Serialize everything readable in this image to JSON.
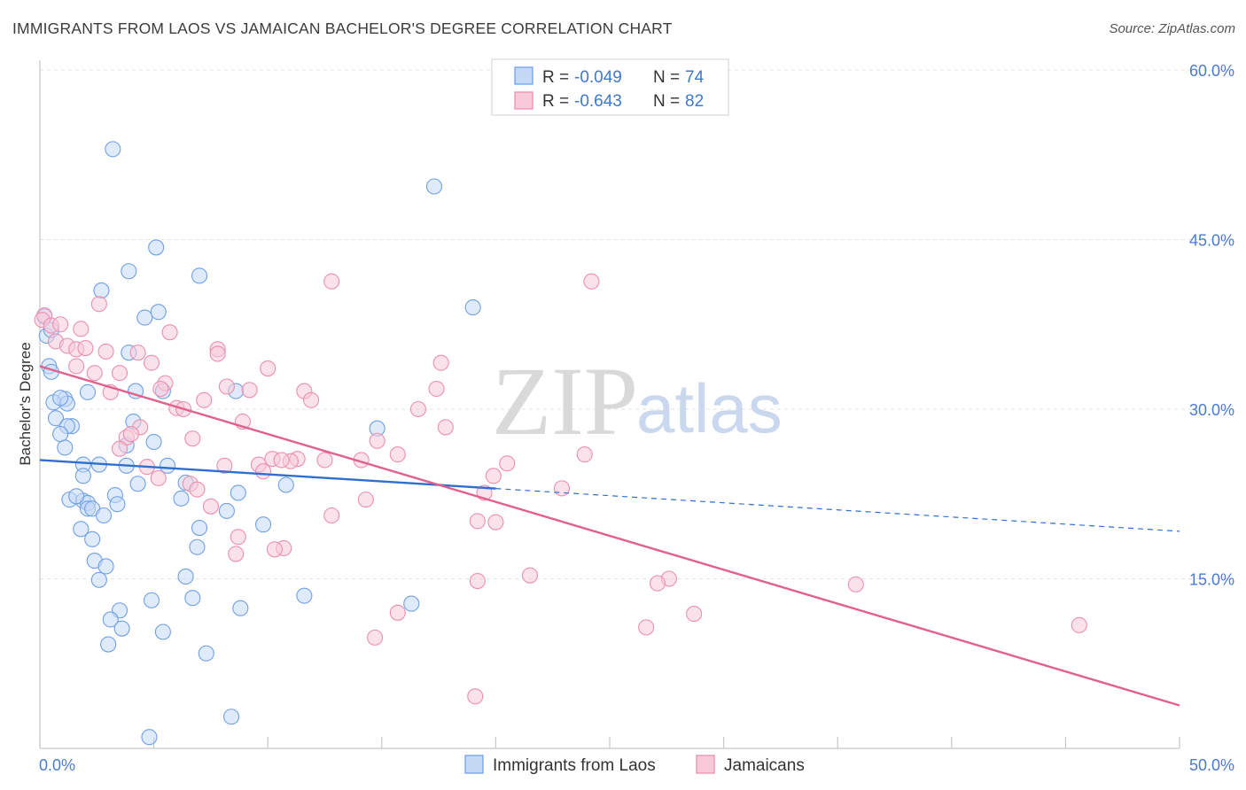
{
  "title": "IMMIGRANTS FROM LAOS VS JAMAICAN BACHELOR'S DEGREE CORRELATION CHART",
  "source": "Source: ZipAtlas.com",
  "watermark": {
    "zip": "ZIP",
    "atlas": "atlas"
  },
  "legend": {
    "rows": [
      {
        "r_label": "R =",
        "r_value": "-0.049",
        "n_label": "N =",
        "n_value": "74",
        "color": "#6fa0e6",
        "fill": "#c5d9f5"
      },
      {
        "r_label": "R =",
        "r_value": "-0.643",
        "n_label": "N =",
        "n_value": "82",
        "color": "#ec8fae",
        "fill": "#f8cad9"
      }
    ]
  },
  "bottom_legend": [
    "Immigrants from Laos",
    "Jamaicans"
  ],
  "chart_data": {
    "type": "scatter",
    "title": "IMMIGRANTS FROM LAOS VS JAMAICAN BACHELOR'S DEGREE CORRELATION CHART",
    "xlabel": "",
    "ylabel": "Bachelor's Degree",
    "xlim": [
      0,
      50
    ],
    "ylim": [
      0,
      60
    ],
    "x_tick_labels": [
      "0.0%",
      "50.0%"
    ],
    "y_ticks": [
      15,
      30,
      45,
      60
    ],
    "y_tick_labels": [
      "15.0%",
      "30.0%",
      "45.0%",
      "60.0%"
    ],
    "grid": true,
    "series": [
      {
        "name": "Immigrants from Laos",
        "color": "#6fa0e6",
        "line_color": "#2e6fcf",
        "trend": {
          "x0": 0,
          "y0": 25.5,
          "x1": 50,
          "y1": 19.2,
          "solid_until": 20
        },
        "points": [
          [
            3.2,
            53
          ],
          [
            17.3,
            49.7
          ],
          [
            5.1,
            44.3
          ],
          [
            3.9,
            42.2
          ],
          [
            7,
            41.8
          ],
          [
            2.7,
            40.5
          ],
          [
            19,
            39
          ],
          [
            5.2,
            38.6
          ],
          [
            4.6,
            38.1
          ],
          [
            0.2,
            38.2
          ],
          [
            0.3,
            36.5
          ],
          [
            0.5,
            37
          ],
          [
            3.9,
            35
          ],
          [
            0.4,
            33.8
          ],
          [
            0.5,
            33.3
          ],
          [
            4.2,
            31.6
          ],
          [
            5.4,
            31.6
          ],
          [
            8.6,
            31.6
          ],
          [
            1.1,
            30.9
          ],
          [
            0.6,
            30.6
          ],
          [
            1.2,
            30.5
          ],
          [
            0.7,
            29.2
          ],
          [
            4.1,
            28.9
          ],
          [
            1.4,
            28.5
          ],
          [
            1.2,
            28.5
          ],
          [
            0.9,
            27.8
          ],
          [
            5.0,
            27.1
          ],
          [
            3.8,
            26.8
          ],
          [
            1.1,
            26.6
          ],
          [
            1.9,
            25.1
          ],
          [
            2.6,
            25.1
          ],
          [
            3.8,
            25
          ],
          [
            5.6,
            25
          ],
          [
            1.9,
            24.1
          ],
          [
            4.3,
            23.4
          ],
          [
            6.4,
            23.5
          ],
          [
            10.8,
            23.3
          ],
          [
            8.7,
            22.6
          ],
          [
            3.3,
            22.4
          ],
          [
            6.2,
            22.1
          ],
          [
            1.3,
            22
          ],
          [
            1.9,
            21.9
          ],
          [
            2.1,
            21.7
          ],
          [
            3.4,
            21.6
          ],
          [
            2.1,
            21.2
          ],
          [
            2.3,
            21.2
          ],
          [
            8.2,
            21
          ],
          [
            2.8,
            20.6
          ],
          [
            9.8,
            19.8
          ],
          [
            7.0,
            19.5
          ],
          [
            1.8,
            19.4
          ],
          [
            2.3,
            18.5
          ],
          [
            6.9,
            17.8
          ],
          [
            2.4,
            16.6
          ],
          [
            2.9,
            16.1
          ],
          [
            6.4,
            15.2
          ],
          [
            2.6,
            14.9
          ],
          [
            11.6,
            13.5
          ],
          [
            6.7,
            13.3
          ],
          [
            4.9,
            13.1
          ],
          [
            16.3,
            12.8
          ],
          [
            8.8,
            12.4
          ],
          [
            3.5,
            12.2
          ],
          [
            3.1,
            11.4
          ],
          [
            3.6,
            10.6
          ],
          [
            5.4,
            10.3
          ],
          [
            3.0,
            9.2
          ],
          [
            7.3,
            8.4
          ],
          [
            8.4,
            2.8
          ],
          [
            4.8,
            1
          ],
          [
            14.8,
            28.3
          ],
          [
            0.9,
            31
          ],
          [
            2.1,
            31.5
          ],
          [
            1.6,
            22.3
          ]
        ]
      },
      {
        "name": "Jamaicans",
        "color": "#ec8fae",
        "line_color": "#e0608e",
        "trend": {
          "x0": 0,
          "y0": 33.8,
          "x1": 50,
          "y1": 3.8
        },
        "points": [
          [
            0.2,
            38.3
          ],
          [
            0.1,
            37.9
          ],
          [
            0.5,
            37.4
          ],
          [
            0.9,
            37.5
          ],
          [
            1.8,
            37.1
          ],
          [
            0.7,
            36
          ],
          [
            1.2,
            35.6
          ],
          [
            1.6,
            35.3
          ],
          [
            2.0,
            35.4
          ],
          [
            2.9,
            35.1
          ],
          [
            4.3,
            35
          ],
          [
            7.8,
            35.3
          ],
          [
            7.8,
            34.9
          ],
          [
            2.6,
            39.3
          ],
          [
            5.7,
            36.8
          ],
          [
            12.8,
            41.3
          ],
          [
            24.2,
            41.3
          ],
          [
            17.6,
            34.1
          ],
          [
            10.0,
            33.6
          ],
          [
            1.6,
            33.8
          ],
          [
            2.4,
            33.2
          ],
          [
            3.5,
            33.2
          ],
          [
            4.9,
            34.1
          ],
          [
            5.5,
            32.3
          ],
          [
            5.3,
            31.8
          ],
          [
            8.2,
            32
          ],
          [
            9.2,
            31.7
          ],
          [
            11.6,
            31.6
          ],
          [
            17.4,
            31.8
          ],
          [
            3.1,
            31.5
          ],
          [
            11.9,
            30.8
          ],
          [
            7.2,
            30.8
          ],
          [
            6.0,
            30.1
          ],
          [
            6.3,
            30
          ],
          [
            16.6,
            30
          ],
          [
            8.9,
            28.9
          ],
          [
            4.4,
            28.4
          ],
          [
            17.8,
            28.4
          ],
          [
            3.8,
            27.5
          ],
          [
            6.7,
            27.4
          ],
          [
            14.8,
            27.2
          ],
          [
            3.5,
            26.5
          ],
          [
            4.0,
            27.8
          ],
          [
            15.7,
            26
          ],
          [
            23.9,
            26
          ],
          [
            10.2,
            25.6
          ],
          [
            11.3,
            25.6
          ],
          [
            11.0,
            25.4
          ],
          [
            10.6,
            25.5
          ],
          [
            12.5,
            25.5
          ],
          [
            14.1,
            25.5
          ],
          [
            9.6,
            25.1
          ],
          [
            8.1,
            25
          ],
          [
            4.7,
            24.9
          ],
          [
            9.8,
            24.5
          ],
          [
            20.5,
            25.2
          ],
          [
            19.9,
            24.1
          ],
          [
            5.2,
            23.9
          ],
          [
            6.6,
            23.4
          ],
          [
            6.9,
            22.9
          ],
          [
            22.9,
            23
          ],
          [
            19.5,
            22.6
          ],
          [
            14.3,
            22
          ],
          [
            7.5,
            21.4
          ],
          [
            12.8,
            20.6
          ],
          [
            19.2,
            20.1
          ],
          [
            20.0,
            20
          ],
          [
            8.7,
            18.7
          ],
          [
            10.7,
            17.7
          ],
          [
            10.3,
            17.6
          ],
          [
            8.6,
            17.2
          ],
          [
            21.5,
            15.3
          ],
          [
            27.6,
            15
          ],
          [
            27.1,
            14.6
          ],
          [
            19.2,
            14.8
          ],
          [
            35.8,
            14.5
          ],
          [
            28.7,
            11.9
          ],
          [
            15.7,
            12
          ],
          [
            45.6,
            10.9
          ],
          [
            26.6,
            10.7
          ],
          [
            14.7,
            9.8
          ],
          [
            19.1,
            4.6
          ]
        ]
      }
    ]
  }
}
